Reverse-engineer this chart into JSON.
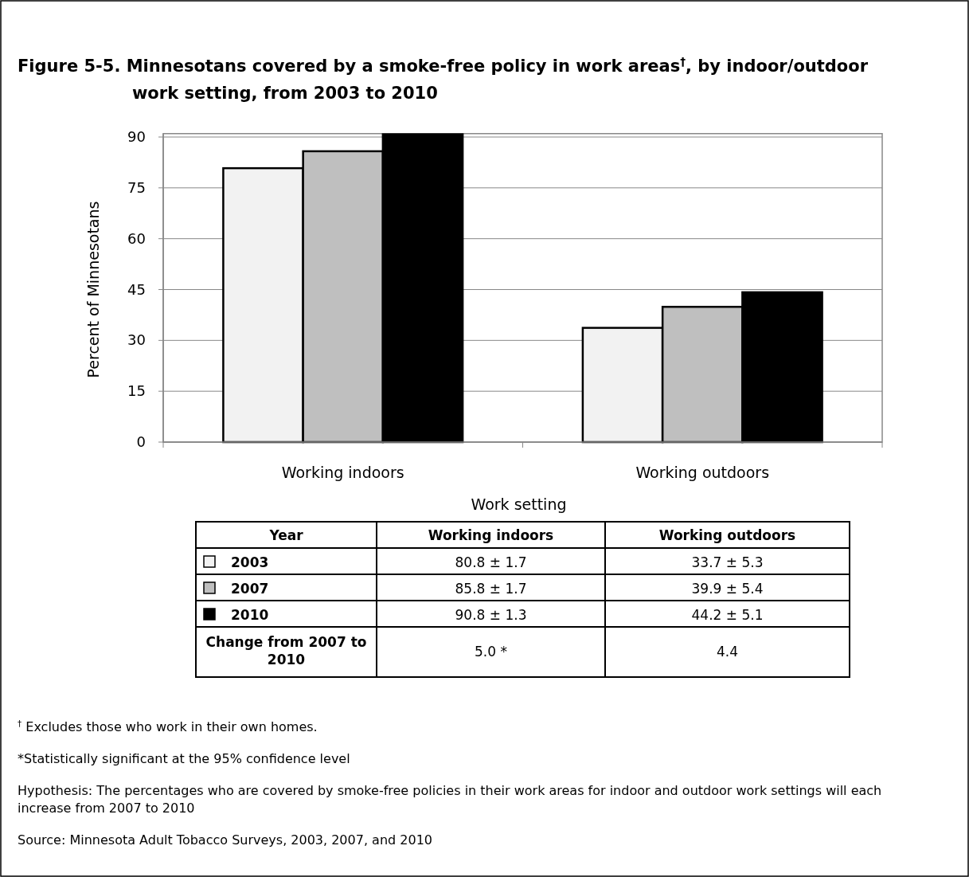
{
  "chart_data": {
    "type": "bar",
    "title": "Figure 5-5.  Minnesotans covered by a smoke-free policy in work areas$^{†}$, by indoor/outdoor work setting, from 2003 to 2010",
    "xlabel": "Work setting",
    "ylabel": "Percent of Minnesotans",
    "legend_title": "Year",
    "categories": [
      "Working indoors",
      "Working outdoors"
    ],
    "series": [
      {
        "name": "2003",
        "color": "#f2f2f2",
        "values": [
          80.8,
          33.7
        ],
        "value_labels": [
          "80.8 ± 1.7",
          "33.7 ± 5.3"
        ]
      },
      {
        "name": "2007",
        "color": "#bfbfbf",
        "values": [
          85.8,
          39.9
        ],
        "value_labels": [
          "85.8 ± 1.7",
          "39.9 ± 5.4"
        ]
      },
      {
        "name": "2010",
        "color": "#000000",
        "values": [
          90.8,
          44.2
        ],
        "value_labels": [
          "90.8 ± 1.3",
          "44.2 ± 5.1"
        ]
      }
    ],
    "ylim": [
      0,
      91
    ],
    "yticks": [
      0,
      15,
      30,
      45,
      60,
      75,
      90
    ],
    "grid": "y",
    "legend": "bottom",
    "annotations": [
      "Change from 2007 to 2010",
      "5.0 *",
      "4.4",
      "$^{†}$ Excludes those who work in their own homes.",
      "*Statistically significant at the 95% confidence level",
      "Hypothesis: The percentages who are covered by smoke-free policies in their work areas for indoor and outdoor work settings will each increase from 2007 to 2010",
      "Source: Minnesota Adult Tobacco Surveys, 2003, 2007, and 2010"
    ]
  }
}
